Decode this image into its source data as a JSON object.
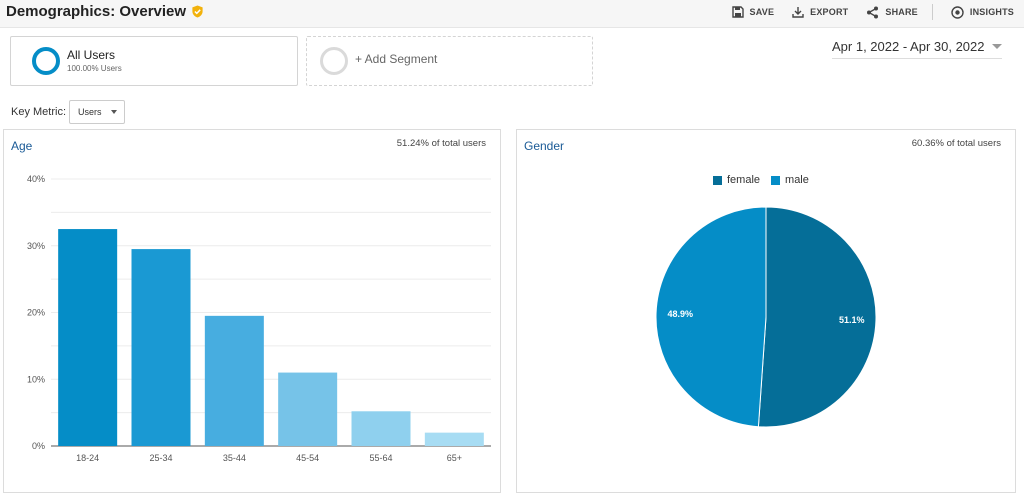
{
  "header": {
    "title": "Demographics: Overview",
    "toolbar": {
      "save": "SAVE",
      "export": "EXPORT",
      "share": "SHARE",
      "insights": "INSIGHTS"
    }
  },
  "segments": {
    "active": {
      "name": "All Users",
      "sub": "100.00% Users"
    },
    "add_label": "+ Add Segment"
  },
  "date_range": "Apr 1, 2022 - Apr 30, 2022",
  "key_metric": {
    "label": "Key Metric:",
    "value": "Users"
  },
  "icons": {
    "verified": "verified-check-icon",
    "save": "save-icon",
    "export": "export-icon",
    "share": "share-icon",
    "insights": "insights-icon"
  },
  "colors": {
    "accent": "#058dc7",
    "title_blue": "#1a5a96",
    "verified": "#f2b20c"
  },
  "age": {
    "title": "Age",
    "share": "51.24% of total users"
  },
  "gender": {
    "title": "Gender",
    "share": "60.36% of total users"
  },
  "chart_data": [
    {
      "type": "bar",
      "title": "Age",
      "categories": [
        "18-24",
        "25-34",
        "35-44",
        "45-54",
        "55-64",
        "65+"
      ],
      "values": [
        32.5,
        29.5,
        19.5,
        11,
        5.2,
        2
      ],
      "ylim": [
        0,
        40
      ],
      "yticks": [
        0,
        10,
        20,
        30,
        40
      ],
      "ytick_labels": [
        "0%",
        "10%",
        "20%",
        "30%",
        "40%"
      ],
      "colors": [
        "#058dc7",
        "#1a99d3",
        "#47ade0",
        "#76c3e8",
        "#8fd0ee",
        "#a7dcf3"
      ],
      "grid": true
    },
    {
      "type": "pie",
      "title": "Gender",
      "labels": [
        "female",
        "male"
      ],
      "values": [
        51.1,
        48.9
      ],
      "value_labels": [
        "51.1%",
        "48.9%"
      ],
      "colors": [
        "#056e98",
        "#058dc7"
      ],
      "legend": "top-center"
    }
  ]
}
